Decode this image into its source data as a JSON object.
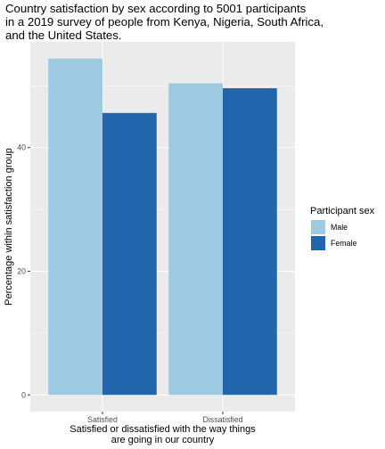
{
  "chart_data": {
    "type": "bar",
    "title": [
      "Country satisfaction by sex according to 5001 participants",
      "in a 2019 survey of people from Kenya, Nigeria, South Africa,",
      "and the United States."
    ],
    "xlabel": [
      "Satisfied or dissatisfied with the way things",
      "are going in our country"
    ],
    "ylabel": "Percentage within satisfaction group",
    "categories": [
      "Satisfied",
      "Dissatisfied"
    ],
    "series": [
      {
        "name": "Male",
        "color": "#9ecae1",
        "values": [
          54.4,
          50.4
        ]
      },
      {
        "name": "Female",
        "color": "#2166ac",
        "values": [
          45.6,
          49.6
        ]
      }
    ],
    "ylim": [
      -2.7,
      57.1
    ],
    "yticks": [
      0,
      20,
      40
    ],
    "grid": true,
    "legend": {
      "title": "Participant sex",
      "position": "right"
    }
  }
}
